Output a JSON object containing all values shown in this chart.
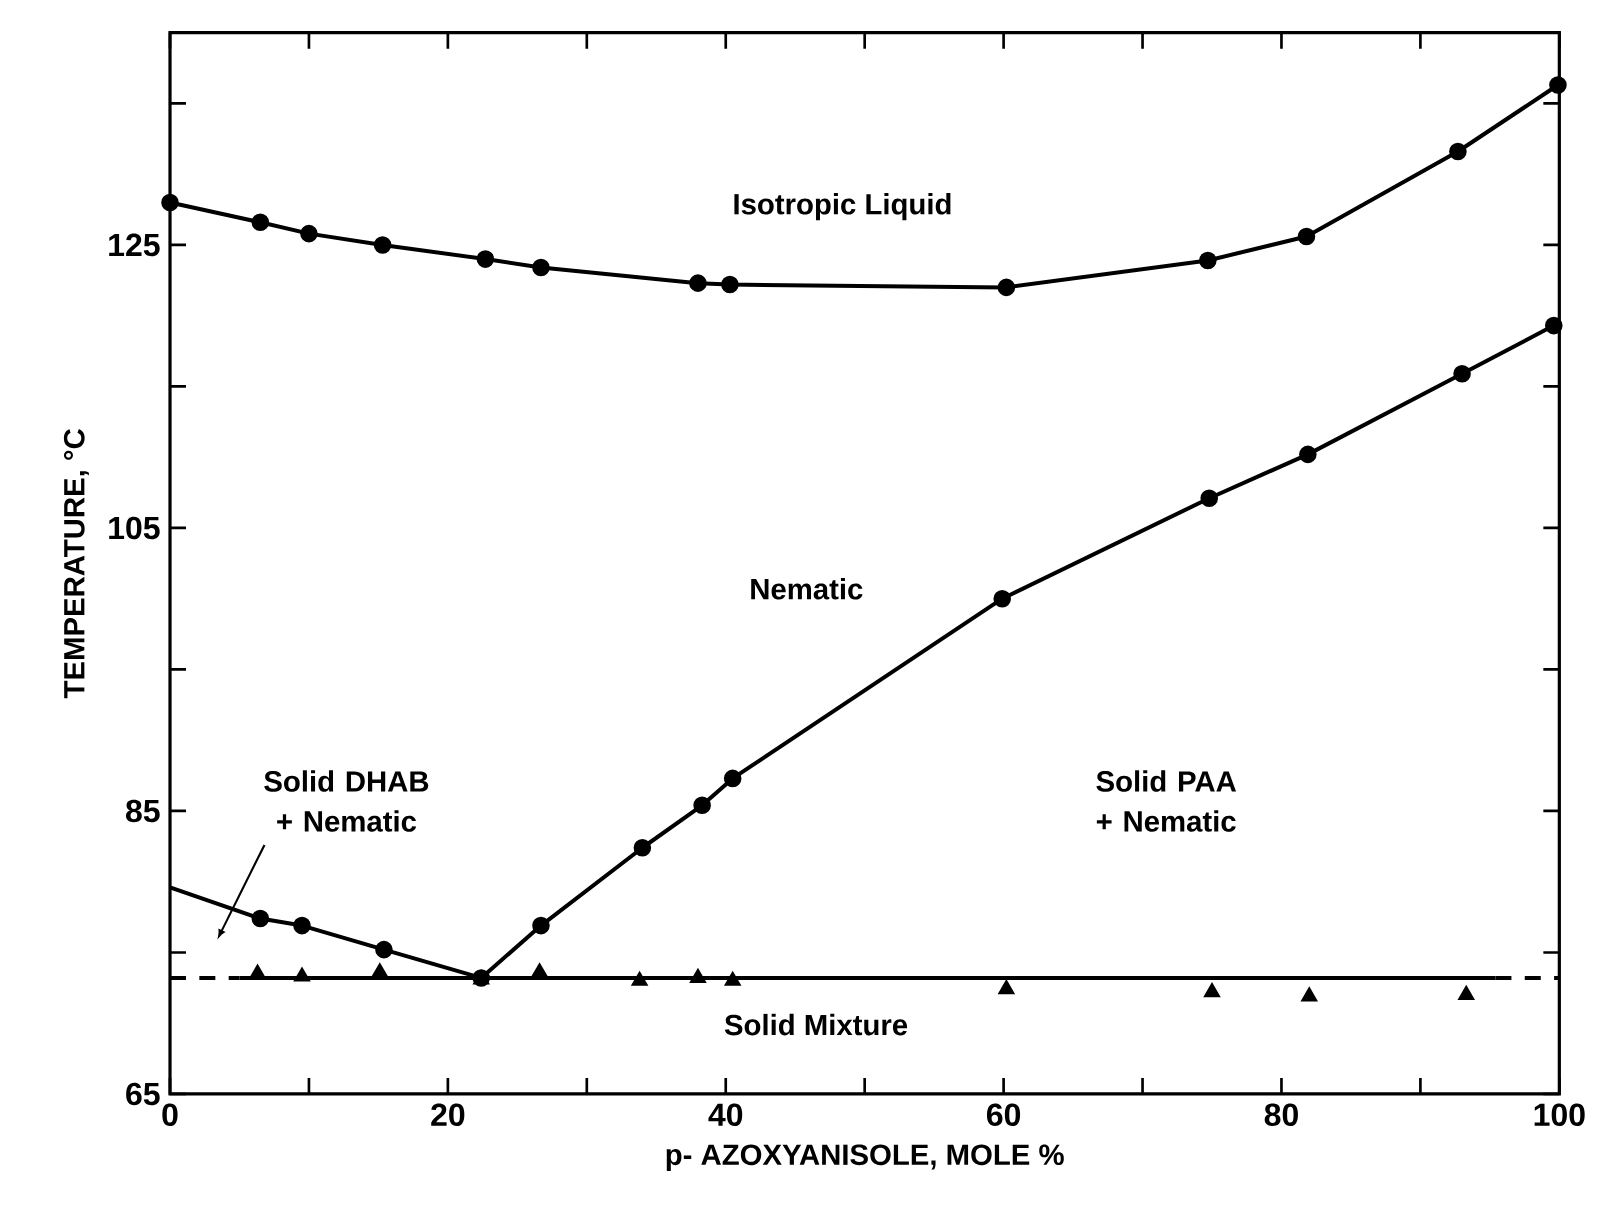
{
  "chart_data": {
    "type": "line",
    "xlabel": "p- AZOXYANISOLE, MOLE %",
    "ylabel": "TEMPERATURE, °C",
    "xlim": [
      0,
      100
    ],
    "ylim": [
      65,
      140
    ],
    "xticks": [
      0,
      {
        "value": 10,
        "label": null
      },
      20,
      {
        "value": 30,
        "label": null
      },
      40,
      {
        "value": 50,
        "label": null
      },
      60,
      {
        "value": 70,
        "label": null
      },
      80,
      {
        "value": 90,
        "label": null
      },
      100
    ],
    "yticks": [
      65,
      {
        "value": 75,
        "label": null
      },
      85,
      {
        "value": 95,
        "label": null
      },
      105,
      {
        "value": 115,
        "label": null
      },
      125,
      {
        "value": 135,
        "label": null
      }
    ],
    "annotations": [
      "Isotropic Liquid",
      "Nematic",
      "Solid DHAB + Nematic",
      "Solid PAA + Nematic",
      "Solid Mixture"
    ],
    "series": [
      {
        "marker": "circle",
        "color": "#000000",
        "x": [
          0,
          6.5,
          10.0,
          15.3,
          22.7,
          26.7,
          38.0,
          40.3,
          60.2,
          74.7,
          81.8,
          92.7,
          99.9
        ],
        "values": [
          128.0,
          126.6,
          125.8,
          125.0,
          124.0,
          123.4,
          122.3,
          122.2,
          122.0,
          123.9,
          125.6,
          131.6,
          136.3
        ]
      },
      {
        "marker": "circle",
        "color": "#000000",
        "x": [
          22.4,
          26.7,
          34.0,
          38.3,
          40.5,
          59.9,
          74.8,
          81.9,
          93.0,
          99.6
        ],
        "values": [
          73.2,
          76.9,
          82.4,
          85.4,
          87.3,
          100.0,
          107.1,
          110.2,
          115.9,
          119.3
        ]
      },
      {
        "marker": "none",
        "color": "#000000",
        "x": [
          0,
          6.5,
          9.5,
          15.4,
          22.4
        ],
        "values": [
          79.6,
          77.4,
          76.9,
          75.2,
          73.2
        ]
      },
      {
        "type": "scatter",
        "marker": "circle",
        "color": "#000000",
        "x": [
          6.5,
          9.5,
          15.4
        ],
        "values": [
          77.4,
          76.9,
          75.2
        ]
      },
      {
        "marker": "none",
        "color": "#000000",
        "x": [
          5,
          95.4
        ],
        "values": [
          73.2,
          73.2
        ]
      },
      {
        "marker": "none",
        "line_style": "dashed",
        "color": "#000000",
        "x": [
          0,
          5,
          50,
          95.4,
          100
        ],
        "values": [
          73.2,
          73.2,
          null,
          73.2,
          73.2
        ]
      },
      {
        "type": "scatter",
        "marker": "triangle",
        "color": "#000000",
        "x": [
          6.3,
          9.5,
          15.1,
          22.4,
          26.6,
          33.8,
          38.0,
          40.5,
          60.2,
          75.0,
          82.0,
          93.3
        ],
        "values": [
          73.5,
          73.3,
          73.6,
          73.1,
          73.6,
          73.0,
          73.2,
          73.0,
          72.4,
          72.2,
          71.9,
          72.0
        ]
      }
    ]
  }
}
